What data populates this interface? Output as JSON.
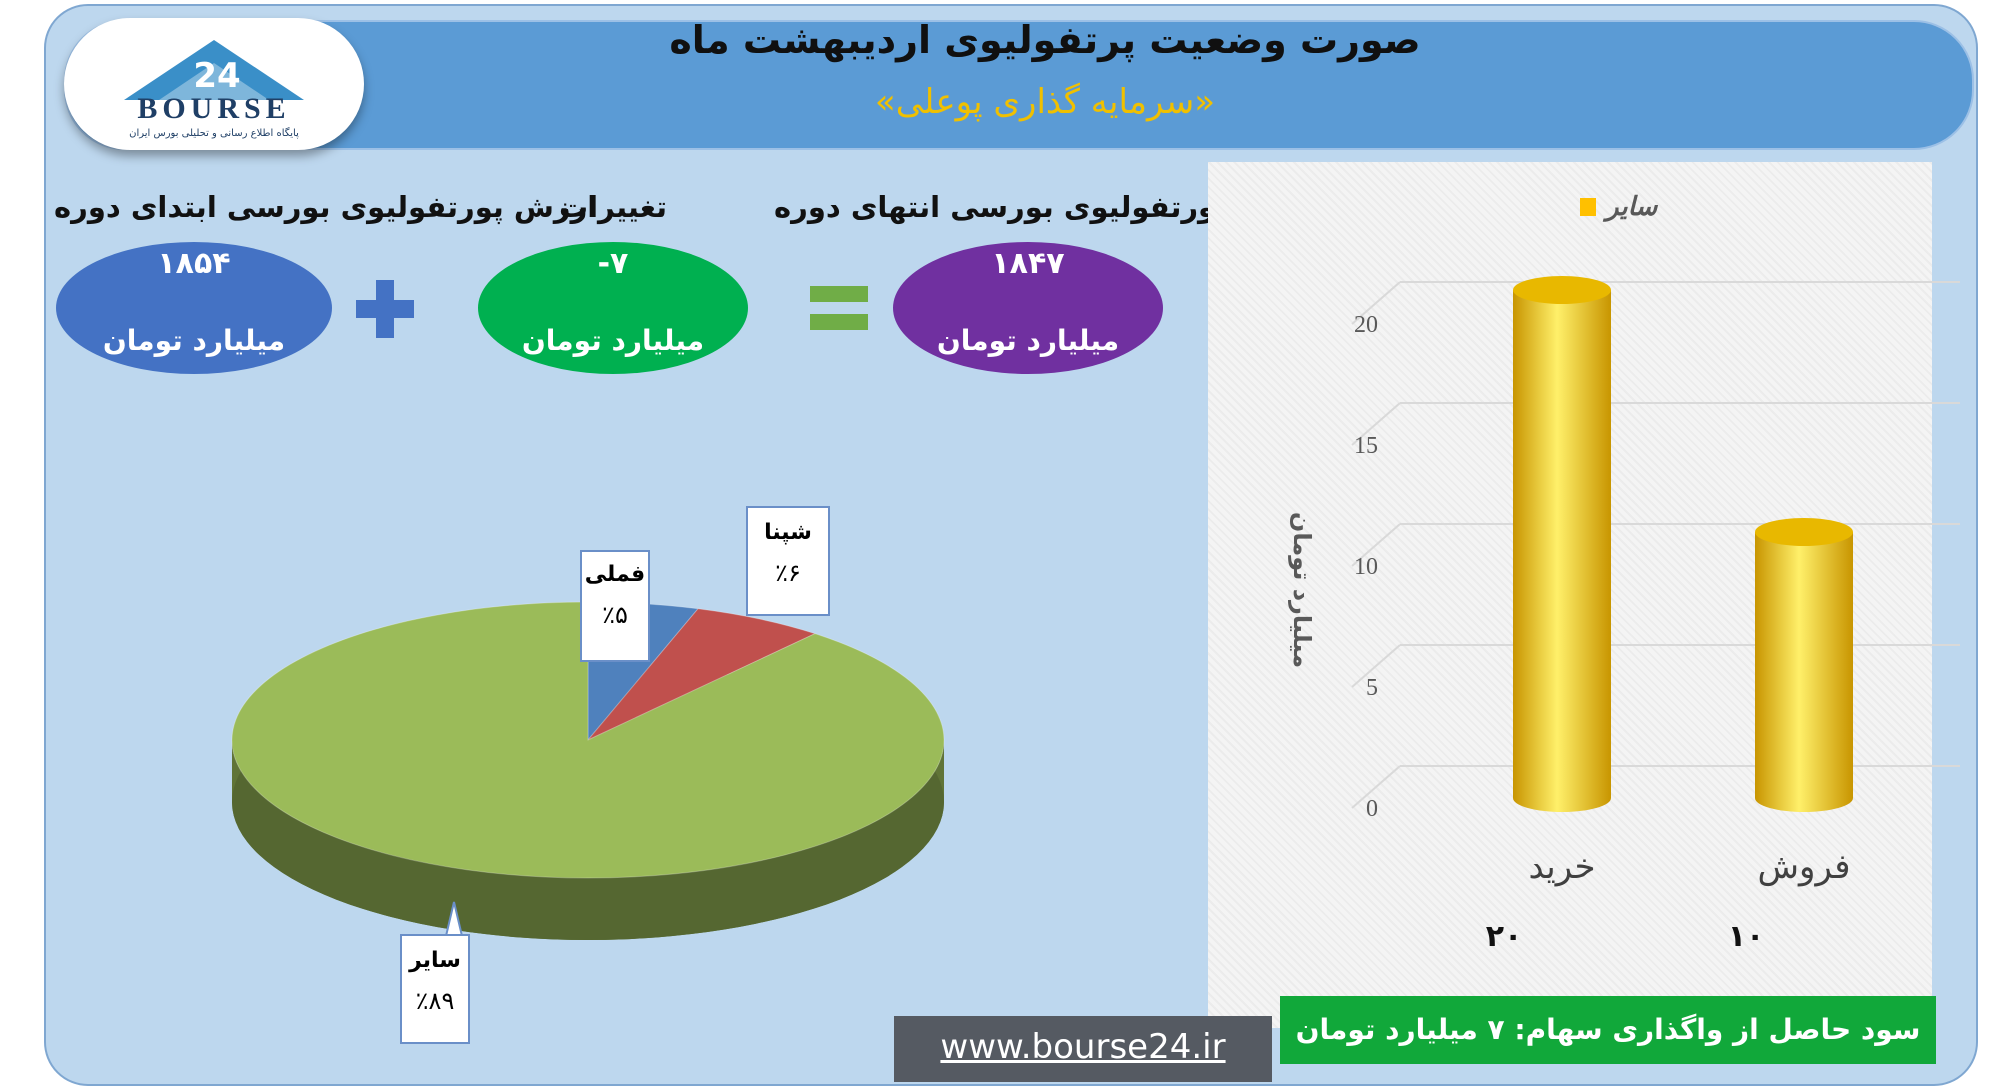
{
  "header": {
    "title": "صورت وضعیت پرتفولیوی اردیبهشت ماه",
    "subtitle": "«سرمایه گذاری پوعلی»",
    "logo_text": "BOURSE",
    "logo_number": "24",
    "logo_tagline": "پایگاه اطلاع رسانی و تحلیلی بورس ایران"
  },
  "summary": {
    "start_label": "ارزش پورتفولیوی بورسی ابتدای دوره",
    "start_value": "۱۸۵۴",
    "change_label": "تغییرات",
    "change_value": "-۷",
    "end_label": "ارزش پورتفولیوی بورسی انتهای دوره",
    "end_value": "۱۸۴۷",
    "unit": "میلیارد تومان",
    "colors": {
      "start": "#4472c4",
      "change": "#00b050",
      "end": "#7030a0",
      "plus": "#4472c4",
      "equals": "#70ad47"
    }
  },
  "footer": {
    "profit_text": "سود حاصل از واگذاری سهام: ۷ میلیارد تومان",
    "url": "www.bourse24.ir"
  },
  "chart_data": [
    {
      "type": "pie",
      "slices": [
        {
          "name": "فملی",
          "label": "٪۵",
          "value": 5,
          "color": "#4f81bd",
          "label_color": "#4472c4"
        },
        {
          "name": "شپنا",
          "label": "٪۶",
          "value": 6,
          "color": "#c0504d",
          "label_color": "#c0504d"
        },
        {
          "name": "سایر",
          "label": "٪۸۹",
          "value": 89,
          "color": "#9bbb59",
          "label_color": "#9bbb59"
        }
      ]
    },
    {
      "type": "bar",
      "categories": [
        "خرید",
        "فروش"
      ],
      "series": [
        {
          "name": "سایر",
          "values": [
            20,
            10
          ],
          "color": "#ffc000"
        }
      ],
      "data_labels": [
        "۲۰",
        "۱۰"
      ],
      "ylabel": "میلیارد تومان",
      "ylim": [
        0,
        20
      ],
      "yticks": [
        "0",
        "5",
        "10",
        "15",
        "20"
      ],
      "legend_position": "top",
      "grid": true
    }
  ]
}
